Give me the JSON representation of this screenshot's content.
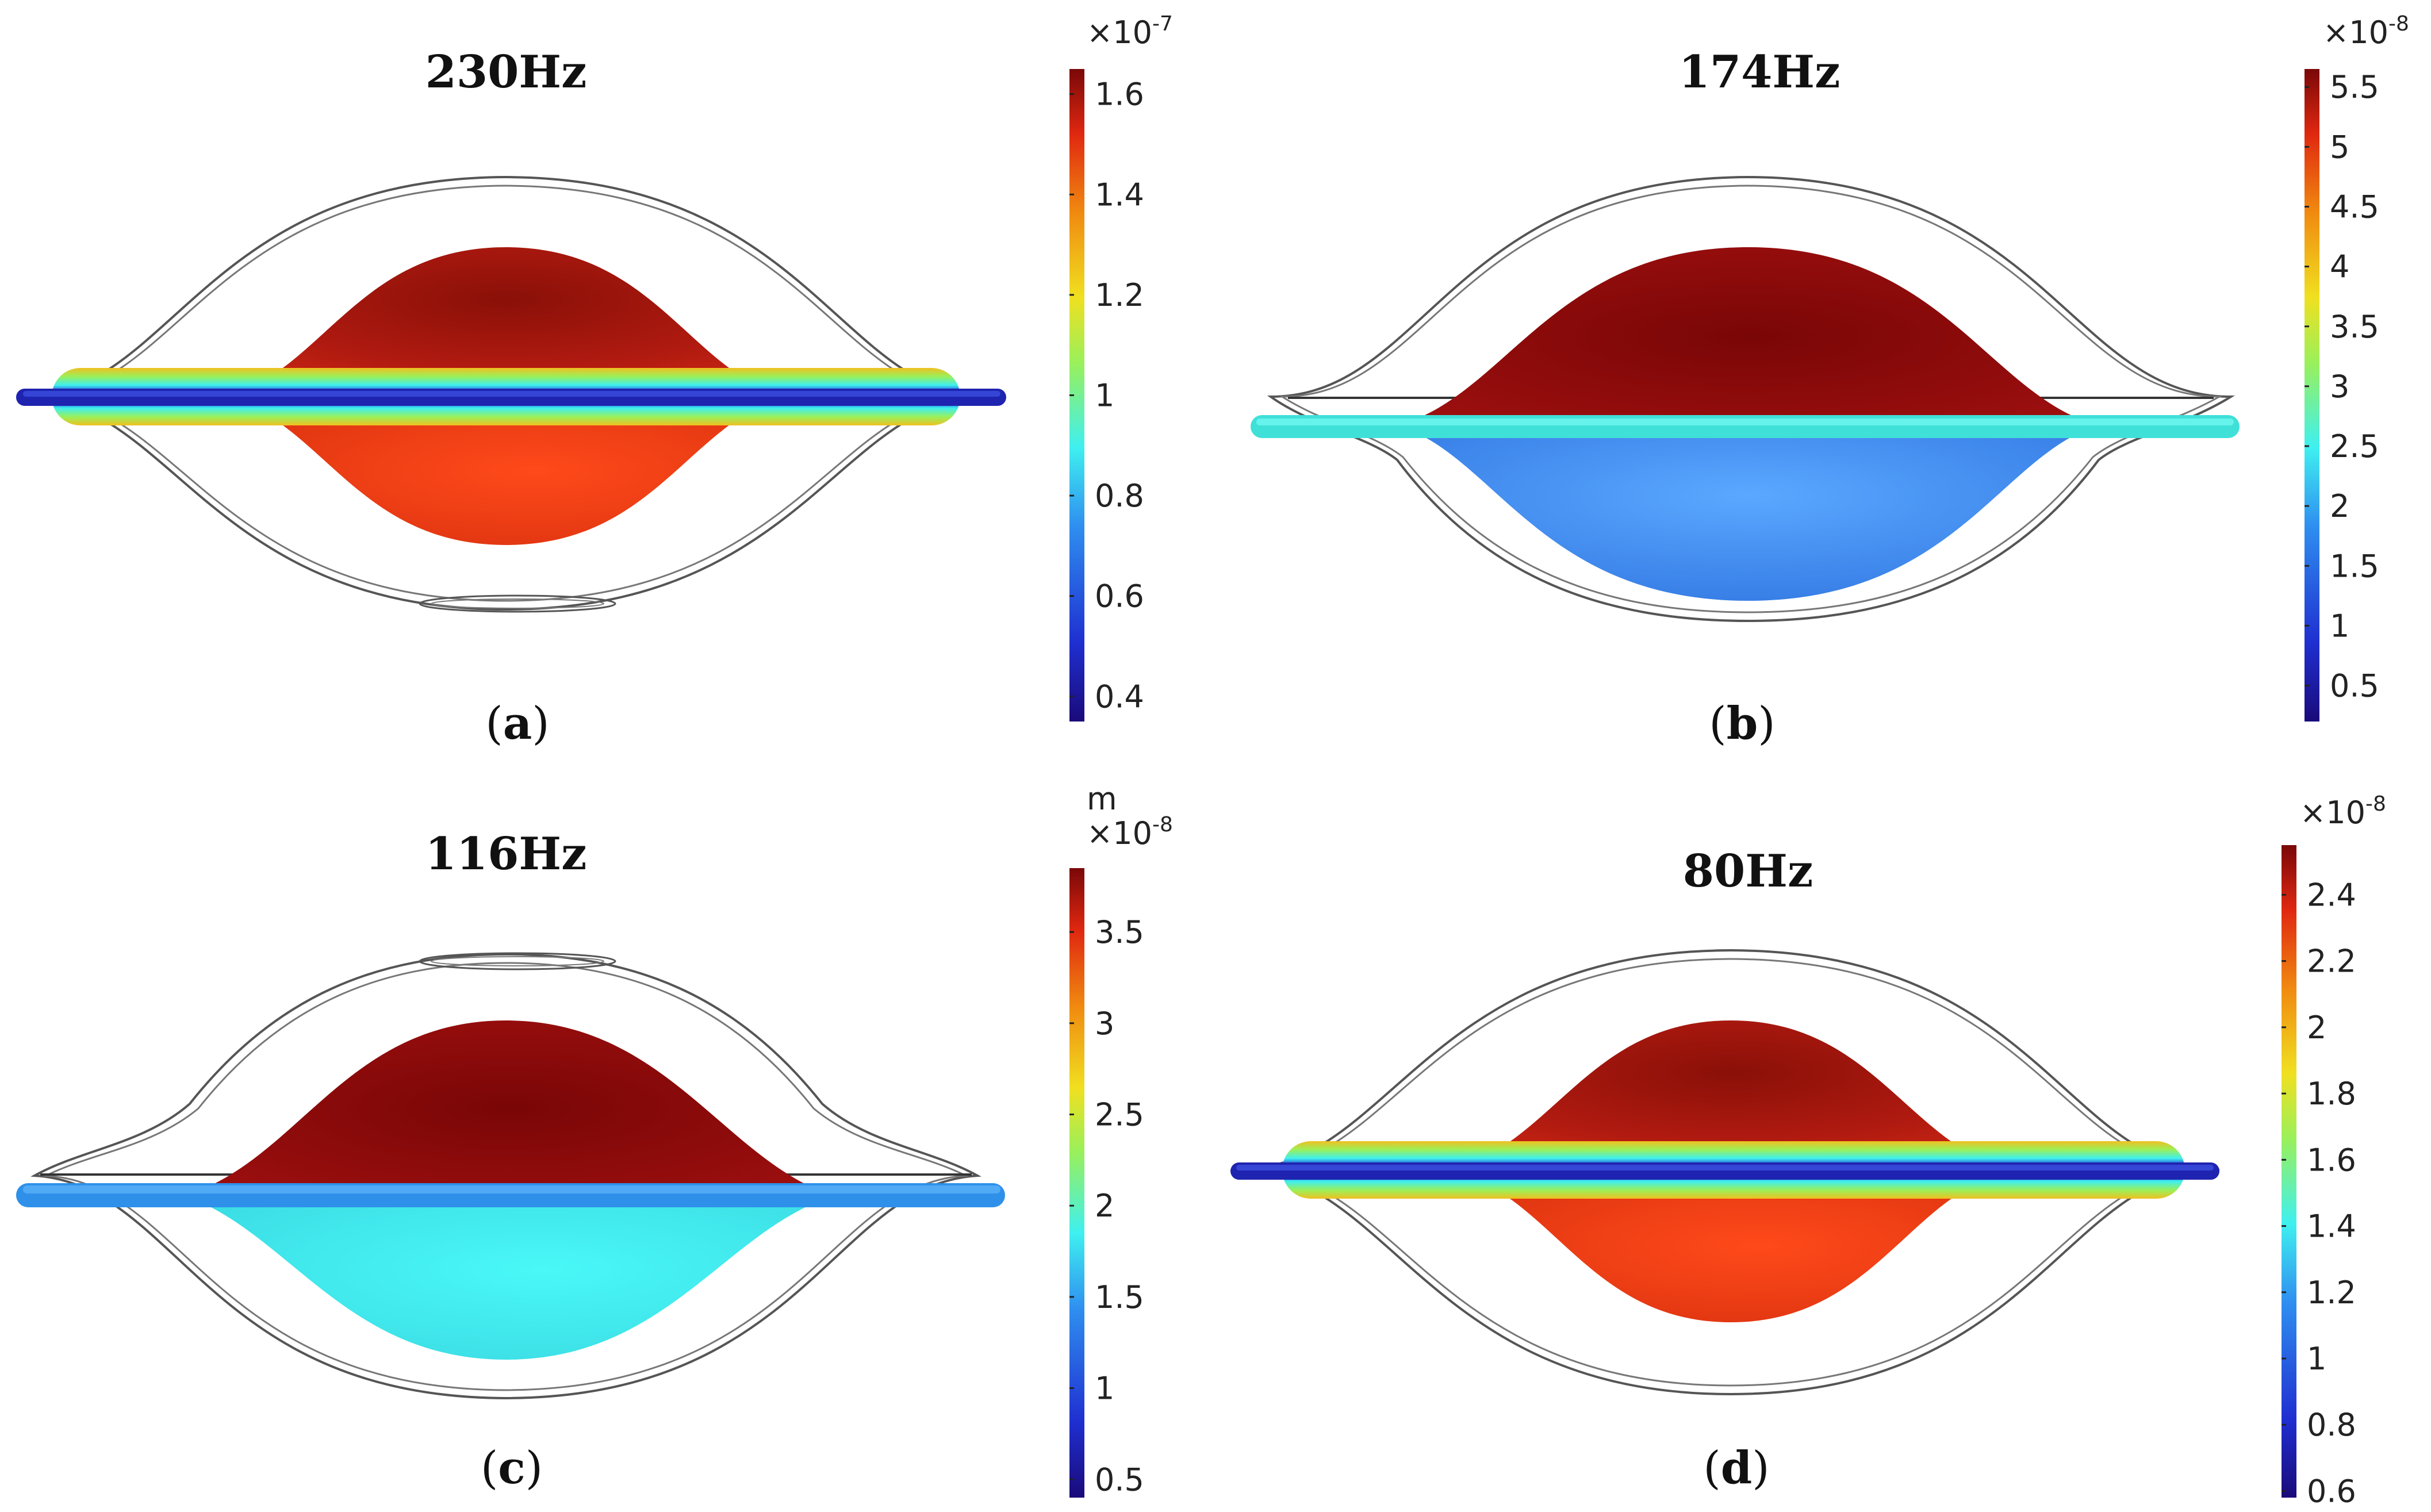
{
  "panels": [
    {
      "id": "a",
      "title": "230Hz",
      "caption_letter": "a",
      "colorbar": {
        "multiplier_base": "×10",
        "multiplier_exp": "-7",
        "unit": "",
        "min": 0.35,
        "max": 1.65,
        "ticks": [
          "1.6",
          "1.4",
          "1.2",
          "1",
          "0.8",
          "0.6",
          "0.4"
        ],
        "tick_values": [
          1.6,
          1.4,
          1.2,
          1.0,
          0.8,
          0.6,
          0.4
        ]
      }
    },
    {
      "id": "b",
      "title": "174Hz",
      "caption_letter": "b",
      "colorbar": {
        "multiplier_base": "×10",
        "multiplier_exp": "-8",
        "unit": "",
        "min": 0.2,
        "max": 5.65,
        "ticks": [
          "5.5",
          "5",
          "4.5",
          "4",
          "3.5",
          "3",
          "2.5",
          "2",
          "1.5",
          "1",
          "0.5"
        ],
        "tick_values": [
          5.5,
          5,
          4.5,
          4,
          3.5,
          3,
          2.5,
          2,
          1.5,
          1,
          0.5
        ]
      }
    },
    {
      "id": "c",
      "title": "116Hz",
      "caption_letter": "c",
      "colorbar": {
        "multiplier_base": "×10",
        "multiplier_exp": "-8",
        "unit": "m",
        "min": 0.4,
        "max": 3.85,
        "ticks": [
          "3.5",
          "3",
          "2.5",
          "2",
          "1.5",
          "1",
          "0.5"
        ],
        "tick_values": [
          3.5,
          3,
          2.5,
          2,
          1.5,
          1,
          0.5
        ]
      }
    },
    {
      "id": "d",
      "title": "80Hz",
      "caption_letter": "d",
      "colorbar": {
        "multiplier_base": "×10",
        "multiplier_exp": "-8",
        "unit": "",
        "min": 0.58,
        "max": 2.55,
        "ticks": [
          "2.4",
          "2.2",
          "2",
          "1.8",
          "1.6",
          "1.4",
          "1.2",
          "1",
          "0.8",
          "0.6"
        ],
        "tick_values": [
          2.4,
          2.2,
          2.0,
          1.8,
          1.6,
          1.4,
          1.2,
          1.0,
          0.8,
          0.6
        ]
      }
    }
  ],
  "colors": {
    "jet": [
      "#1a0a7a",
      "#1f2fd0",
      "#2f8ff0",
      "#3ff0f0",
      "#9af05a",
      "#f0e020",
      "#f08a10",
      "#e02810",
      "#7a0808"
    ],
    "outline": "#444444"
  }
}
